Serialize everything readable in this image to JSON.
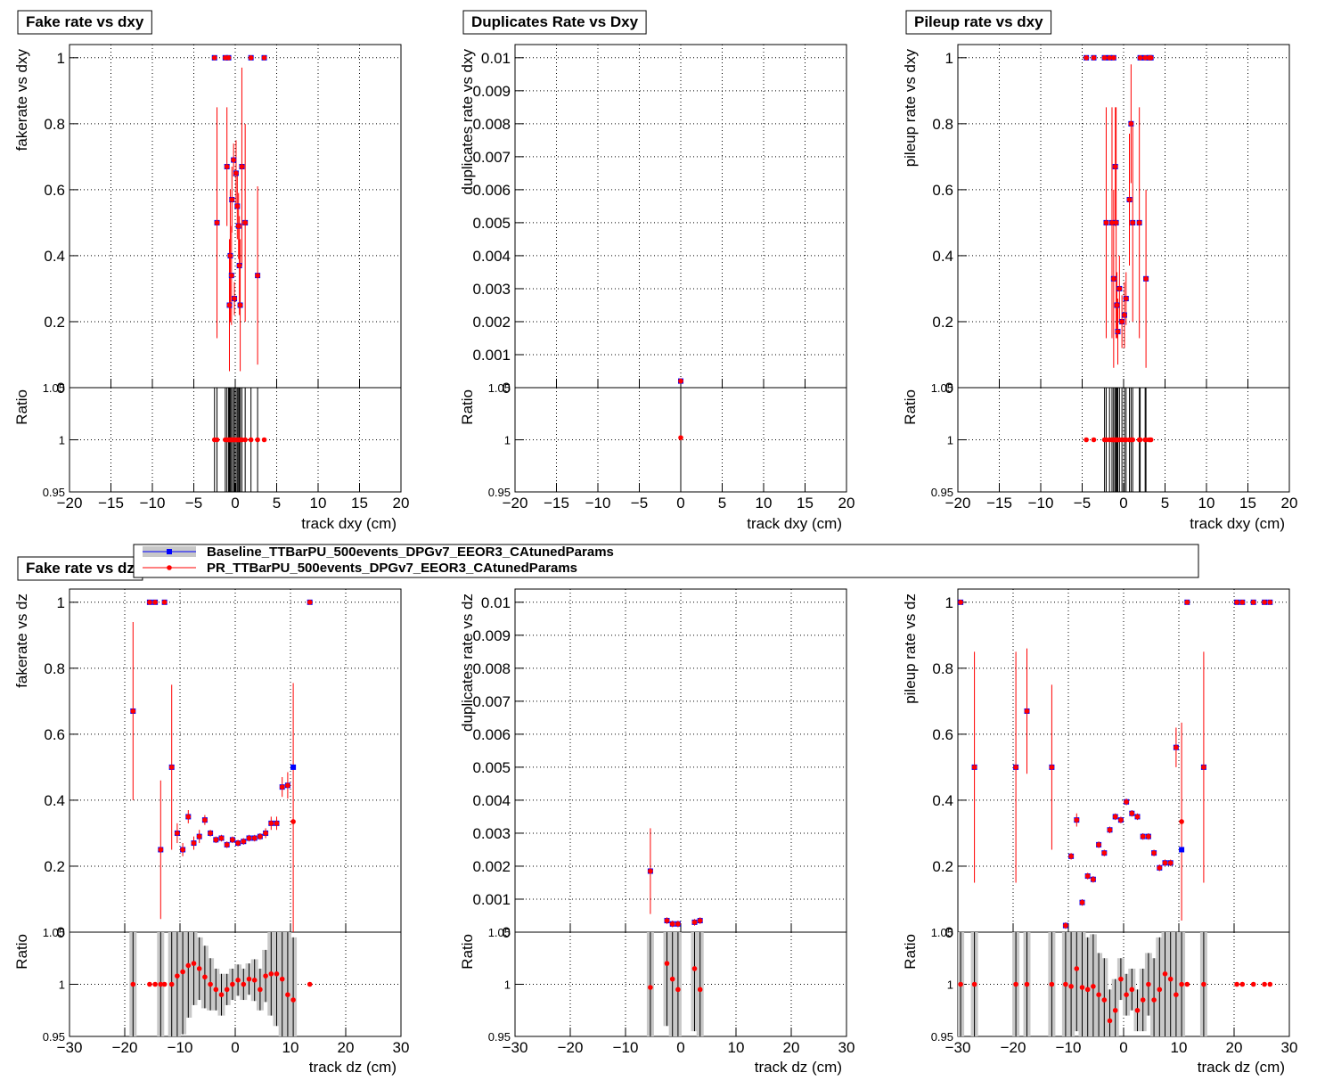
{
  "legend": [
    {
      "name": "Baseline_TTBarPU_500events_DPGv7_EEOR3_CAtunedParams",
      "color": "#0000ff"
    },
    {
      "name": "PR_TTBarPU_500events_DPGv7_EEOR3_CAtunedParams",
      "color": "#ff0000"
    }
  ],
  "chart_data": [
    {
      "type": "scatter",
      "title": "Fake rate vs dxy",
      "ylabel": "fakerate vs dxy",
      "xlabel": "track dxy (cm)",
      "ratio_label": "Ratio",
      "xlim": [
        -20,
        20
      ],
      "xticks": [
        {
          "value": -20,
          "label": "−20"
        },
        {
          "value": -15,
          "label": "−15"
        },
        {
          "value": -10,
          "label": "−10"
        },
        {
          "value": -5,
          "label": "−5"
        },
        0,
        5,
        10,
        15,
        20
      ],
      "ylim": [
        0,
        1.04
      ],
      "yticks": [
        0,
        0.2,
        0.4,
        0.6,
        0.8,
        1
      ],
      "ratio_ylim": [
        0.95,
        1.05
      ],
      "ratio_yticks": [
        0.95,
        1,
        {
          "value": 1.05,
          "label": "1.05"
        }
      ],
      "grid": true,
      "ratio_band": false,
      "x": [
        -2.5,
        -1.2,
        -0.8,
        1.9,
        3.5,
        -2.2,
        -1.0,
        -0.7,
        -0.4,
        -0.2,
        -0.6,
        -0.45,
        -0.1,
        0.1,
        0.25,
        0.4,
        0.5,
        0.6,
        0.8,
        1.2,
        2.7
      ],
      "series": [
        {
          "color": "#0000ff",
          "values": [
            1,
            1,
            1,
            1,
            1,
            0.5,
            0.67,
            0.25,
            0.57,
            0.69,
            0.4,
            0.34,
            0.27,
            0.65,
            0.55,
            0.49,
            0.37,
            0.25,
            0.67,
            0.5,
            0.34
          ]
        },
        {
          "color": "#ff0000",
          "values": [
            1,
            1,
            1,
            1,
            1,
            0.5,
            0.67,
            0.25,
            0.57,
            0.69,
            0.4,
            0.34,
            0.27,
            0.65,
            0.55,
            0.49,
            0.37,
            0.25,
            0.67,
            0.5,
            0.34
          ],
          "errors": [
            0,
            0,
            0,
            0,
            0,
            0.35,
            0.18,
            0.2,
            0.1,
            0.05,
            0.2,
            0.15,
            0.05,
            0.1,
            0.1,
            0.1,
            0.15,
            0.2,
            0.3,
            0.3,
            0.27
          ]
        }
      ],
      "ratio": {
        "values": [
          1,
          1,
          1,
          1,
          1,
          1,
          1,
          1,
          1,
          1,
          1,
          1,
          1,
          1,
          1,
          1,
          1,
          1,
          1,
          1,
          1
        ],
        "errors": [
          0.1,
          0.1,
          0.1,
          0.1,
          0,
          0.1,
          0.1,
          0.1,
          0.1,
          0.1,
          0.1,
          0.1,
          0.1,
          0.1,
          0.1,
          0.1,
          0.1,
          0.1,
          0.1,
          0.1,
          0.1
        ]
      }
    },
    {
      "type": "scatter",
      "title": "Duplicates Rate vs Dxy",
      "ylabel": "duplicates rate vs dxy",
      "xlabel": "track dxy (cm)",
      "ratio_label": "Ratio",
      "xlim": [
        -20,
        20
      ],
      "xticks": [
        {
          "value": -20,
          "label": "−20"
        },
        {
          "value": -15,
          "label": "−15"
        },
        {
          "value": -10,
          "label": "−10"
        },
        {
          "value": -5,
          "label": "−5"
        },
        0,
        5,
        10,
        15,
        20
      ],
      "ylim": [
        0,
        0.0104
      ],
      "yticks": [
        0,
        0.001,
        0.002,
        0.003,
        0.004,
        0.005,
        0.006,
        0.007,
        0.008,
        0.009,
        0.01
      ],
      "ratio_ylim": [
        0.95,
        1.05
      ],
      "ratio_yticks": [
        0.95,
        1,
        {
          "value": 1.05,
          "label": "1.05"
        }
      ],
      "grid": true,
      "ratio_band": false,
      "x": [
        0
      ],
      "series": [
        {
          "color": "#0000ff",
          "values": [
            0.0002
          ]
        },
        {
          "color": "#ff0000",
          "values": [
            0.0002
          ],
          "errors": [
            2e-05
          ]
        }
      ],
      "ratio": {
        "values": [
          1.002
        ],
        "errors": [
          0.1
        ]
      }
    },
    {
      "type": "scatter",
      "title": "Pileup rate vs dxy",
      "ylabel": "pileup rate vs dxy",
      "xlabel": "track dxy (cm)",
      "ratio_label": "Ratio",
      "xlim": [
        -20,
        20
      ],
      "xticks": [
        {
          "value": -20,
          "label": "−20"
        },
        {
          "value": -15,
          "label": "−15"
        },
        {
          "value": -10,
          "label": "−10"
        },
        {
          "value": -5,
          "label": "−5"
        },
        0,
        5,
        10,
        15,
        20
      ],
      "ylim": [
        0,
        1.04
      ],
      "yticks": [
        0,
        0.2,
        0.4,
        0.6,
        0.8,
        1
      ],
      "ratio_ylim": [
        0.95,
        1.05
      ],
      "ratio_yticks": [
        0.95,
        1,
        {
          "value": 1.05,
          "label": "1.05"
        }
      ],
      "grid": true,
      "ratio_band": false,
      "x": [
        -4.5,
        -3.6,
        -2.3,
        -1.7,
        -1.2,
        2.0,
        2.6,
        3.1,
        3.3,
        -2.1,
        -1.4,
        -0.9,
        1.9,
        -1.0,
        0.9,
        -1.2,
        2.7,
        -0.5,
        -0.8,
        -0.7,
        -0.2,
        0.3,
        0.1,
        0.7,
        1.1
      ],
      "series": [
        {
          "color": "#0000ff",
          "values": [
            1,
            1,
            1,
            1,
            1,
            1,
            1,
            1,
            1,
            0.5,
            0.5,
            0.5,
            0.5,
            0.67,
            0.8,
            0.33,
            0.33,
            0.3,
            0.25,
            0.17,
            0.2,
            0.27,
            0.22,
            0.57,
            0.5
          ]
        },
        {
          "color": "#ff0000",
          "values": [
            1,
            1,
            1,
            1,
            1,
            1,
            1,
            1,
            1,
            0.5,
            0.5,
            0.5,
            0.5,
            0.67,
            0.8,
            0.33,
            0.33,
            0.3,
            0.25,
            0.17,
            0.2,
            0.27,
            0.22,
            0.57,
            0.5
          ],
          "errors": [
            0,
            0,
            0,
            0,
            0,
            0,
            0,
            0,
            0,
            0.35,
            0.35,
            0.35,
            0.35,
            0.18,
            0.18,
            0.27,
            0.27,
            0.1,
            0.1,
            0.1,
            0.08,
            0.08,
            0.1,
            0.2,
            0.3
          ]
        }
      ],
      "ratio": {
        "values": [
          1,
          1,
          1,
          1,
          1,
          1,
          1,
          1,
          1,
          1,
          1,
          1,
          1,
          1,
          1,
          1,
          1,
          1,
          1,
          1,
          1,
          1,
          1,
          1,
          1
        ],
        "errors": [
          0,
          0,
          0.1,
          0.1,
          0.1,
          0.1,
          0.1,
          0,
          0,
          0.1,
          0.1,
          0.1,
          0.1,
          0.1,
          0.1,
          0.1,
          0.1,
          0.1,
          0.1,
          0.1,
          0.1,
          0.1,
          0.1,
          0.1,
          0.1
        ]
      }
    },
    {
      "type": "scatter",
      "title": "Fake rate vs dz",
      "ylabel": "fakerate vs dz",
      "xlabel": "track dz (cm)",
      "ratio_label": "Ratio",
      "xlim": [
        -30,
        30
      ],
      "xticks": [
        {
          "value": -30,
          "label": "−30"
        },
        {
          "value": -20,
          "label": "−20"
        },
        {
          "value": -10,
          "label": "−10"
        },
        0,
        10,
        20,
        30
      ],
      "ylim": [
        0,
        1.04
      ],
      "yticks": [
        0,
        0.2,
        0.4,
        0.6,
        0.8,
        1
      ],
      "ratio_ylim": [
        0.95,
        1.05
      ],
      "ratio_yticks": [
        0.95,
        1,
        {
          "value": 1.05,
          "label": "1.05"
        }
      ],
      "grid": true,
      "ratio_band": true,
      "x": [
        -18.5,
        -15.5,
        -14.5,
        -12.8,
        -13.5,
        -11.5,
        -10.5,
        -9.5,
        -8.5,
        -7.5,
        -6.5,
        -5.5,
        -4.5,
        -3.5,
        -2.5,
        -1.5,
        -0.5,
        0.5,
        1.5,
        2.5,
        3.5,
        4.5,
        5.5,
        6.5,
        7.5,
        8.5,
        9.5,
        10.5,
        13.5
      ],
      "series": [
        {
          "color": "#0000ff",
          "values": [
            0.67,
            1,
            1,
            1,
            0.25,
            0.5,
            0.3,
            0.25,
            0.35,
            0.27,
            0.29,
            0.34,
            0.3,
            0.28,
            0.285,
            0.265,
            0.28,
            0.27,
            0.275,
            0.285,
            0.285,
            0.29,
            0.3,
            0.33,
            0.33,
            0.44,
            0.445,
            0.5,
            1
          ]
        },
        {
          "color": "#ff0000",
          "values": [
            0.67,
            1,
            1,
            1,
            0.25,
            0.5,
            0.3,
            0.25,
            0.35,
            0.27,
            0.29,
            0.34,
            0.3,
            0.28,
            0.285,
            0.265,
            0.28,
            0.27,
            0.275,
            0.285,
            0.285,
            0.29,
            0.3,
            0.33,
            0.33,
            0.44,
            0.445,
            0.335,
            1
          ],
          "errors": [
            0.27,
            0,
            0,
            0,
            0.21,
            0.25,
            0.03,
            0.02,
            0.02,
            0.02,
            0.02,
            0.015,
            0.01,
            0.01,
            0.01,
            0.01,
            0.01,
            0.01,
            0.01,
            0.01,
            0.01,
            0.01,
            0.015,
            0.02,
            0.02,
            0.03,
            0.04,
            0.42,
            0
          ]
        }
      ],
      "ratio": {
        "values": [
          1,
          1,
          1,
          1,
          1,
          1,
          1.008,
          1.012,
          1.018,
          1.02,
          1.015,
          1.007,
          1,
          0.995,
          0.99,
          0.995,
          1,
          1.004,
          1,
          1.005,
          1.004,
          0.995,
          1.008,
          1.01,
          1.01,
          1.005,
          0.99,
          0.985,
          1
        ],
        "errors": [
          0.06,
          0,
          0,
          0,
          0.06,
          0.06,
          0.06,
          0.06,
          0.05,
          0.04,
          0.03,
          0.03,
          0.025,
          0.02,
          0.02,
          0.015,
          0.015,
          0.015,
          0.015,
          0.015,
          0.02,
          0.02,
          0.025,
          0.04,
          0.05,
          0.06,
          0.06,
          0.06,
          0
        ]
      }
    },
    {
      "type": "scatter",
      "ylabel": "duplicates rate vs dz",
      "xlabel": "track dz (cm)",
      "ratio_label": "Ratio",
      "xlim": [
        -30,
        30
      ],
      "xticks": [
        {
          "value": -30,
          "label": "−30"
        },
        {
          "value": -20,
          "label": "−20"
        },
        {
          "value": -10,
          "label": "−10"
        },
        0,
        10,
        20,
        30
      ],
      "ylim": [
        0,
        0.0104
      ],
      "yticks": [
        0,
        0.001,
        0.002,
        0.003,
        0.004,
        0.005,
        0.006,
        0.007,
        0.008,
        0.009,
        0.01
      ],
      "ratio_ylim": [
        0.95,
        1.05
      ],
      "ratio_yticks": [
        0.95,
        1,
        {
          "value": 1.05,
          "label": "1.05"
        }
      ],
      "grid": true,
      "ratio_band": true,
      "x": [
        -5.5,
        -2.5,
        -1.5,
        -0.5,
        2.5,
        3.5
      ],
      "series": [
        {
          "color": "#0000ff",
          "values": [
            0.00185,
            0.00035,
            0.00025,
            0.00025,
            0.0003,
            0.00035
          ]
        },
        {
          "color": "#ff0000",
          "values": [
            0.00185,
            0.00035,
            0.00025,
            0.00025,
            0.0003,
            0.00035
          ],
          "errors": [
            0.0013,
            0.0001,
            0.0001,
            0.0001,
            0.0001,
            0.0001
          ]
        }
      ],
      "ratio": {
        "values": [
          0.997,
          1.02,
          1.005,
          0.995,
          1.015,
          0.995
        ],
        "errors": [
          0.06,
          0.06,
          0.06,
          0.06,
          0.06,
          0.06
        ]
      }
    },
    {
      "type": "scatter",
      "ylabel": "pileup rate vs dz",
      "xlabel": "track dz (cm)",
      "ratio_label": "Ratio",
      "xlim": [
        -30,
        30
      ],
      "xticks": [
        {
          "value": -30,
          "label": "−30"
        },
        {
          "value": -20,
          "label": "−20"
        },
        {
          "value": -10,
          "label": "−10"
        },
        0,
        10,
        20,
        30
      ],
      "ylim": [
        0,
        1.04
      ],
      "yticks": [
        0,
        0.2,
        0.4,
        0.6,
        0.8,
        1
      ],
      "ratio_ylim": [
        0.95,
        1.05
      ],
      "ratio_yticks": [
        0.95,
        1,
        {
          "value": 1.05,
          "label": "1.05"
        }
      ],
      "grid": true,
      "ratio_band": true,
      "x": [
        -29.5,
        -27,
        -19.5,
        -17.5,
        -13,
        -10.5,
        -9.5,
        -8.5,
        -7.5,
        -6.5,
        -5.5,
        -4.5,
        -3.5,
        -2.5,
        -1.5,
        -0.5,
        0.5,
        1.5,
        2.5,
        3.5,
        4.5,
        5.5,
        6.5,
        7.5,
        8.5,
        9.5,
        10.5,
        11.5,
        14.5,
        20.5,
        21.5,
        23.5,
        25.5,
        26.5
      ],
      "series": [
        {
          "color": "#0000ff",
          "values": [
            1,
            0.5,
            0.5,
            0.67,
            0.5,
            0.02,
            0.23,
            0.34,
            0.09,
            0.17,
            0.16,
            0.265,
            0.24,
            0.31,
            0.35,
            0.34,
            0.395,
            0.36,
            0.35,
            0.29,
            0.29,
            0.24,
            0.195,
            0.21,
            0.21,
            0.56,
            0.25,
            1,
            0.5,
            1,
            1,
            1,
            1,
            1
          ]
        },
        {
          "color": "#ff0000",
          "values": [
            1,
            0.5,
            0.5,
            0.67,
            0.5,
            0.02,
            0.23,
            0.34,
            0.09,
            0.17,
            0.16,
            0.265,
            0.24,
            0.31,
            0.35,
            0.34,
            0.395,
            0.36,
            0.35,
            0.29,
            0.29,
            0.24,
            0.195,
            0.21,
            0.21,
            0.56,
            0.335,
            1,
            0.5,
            1,
            1,
            1,
            1,
            1
          ],
          "errors": [
            0,
            0.35,
            0.35,
            0.19,
            0.25,
            0.01,
            0.01,
            0.02,
            0.01,
            0.01,
            0.01,
            0.01,
            0.01,
            0.01,
            0.01,
            0.01,
            0.01,
            0.01,
            0.01,
            0.01,
            0.01,
            0.01,
            0.01,
            0.01,
            0.01,
            0.06,
            0.3,
            0,
            0.35,
            0,
            0,
            0,
            0,
            0
          ]
        }
      ],
      "ratio": {
        "values": [
          1,
          1,
          1,
          1,
          1,
          1,
          0.998,
          1.015,
          0.997,
          0.995,
          0.998,
          0.99,
          0.985,
          0.965,
          0.975,
          1.005,
          0.99,
          0.995,
          0.975,
          0.985,
          1,
          0.985,
          0.995,
          1.01,
          1.005,
          0.99,
          1,
          1,
          1,
          1,
          1,
          1,
          1,
          1
        ],
        "errors": [
          0.06,
          0.06,
          0.06,
          0.06,
          0.06,
          0.06,
          0.06,
          0.06,
          0.06,
          0.05,
          0.05,
          0.04,
          0.04,
          0.03,
          0.03,
          0.02,
          0.02,
          0.02,
          0.02,
          0.03,
          0.03,
          0.04,
          0.05,
          0.06,
          0.06,
          0.06,
          0.06,
          0,
          0.06,
          0,
          0,
          0,
          0,
          0
        ]
      }
    }
  ]
}
